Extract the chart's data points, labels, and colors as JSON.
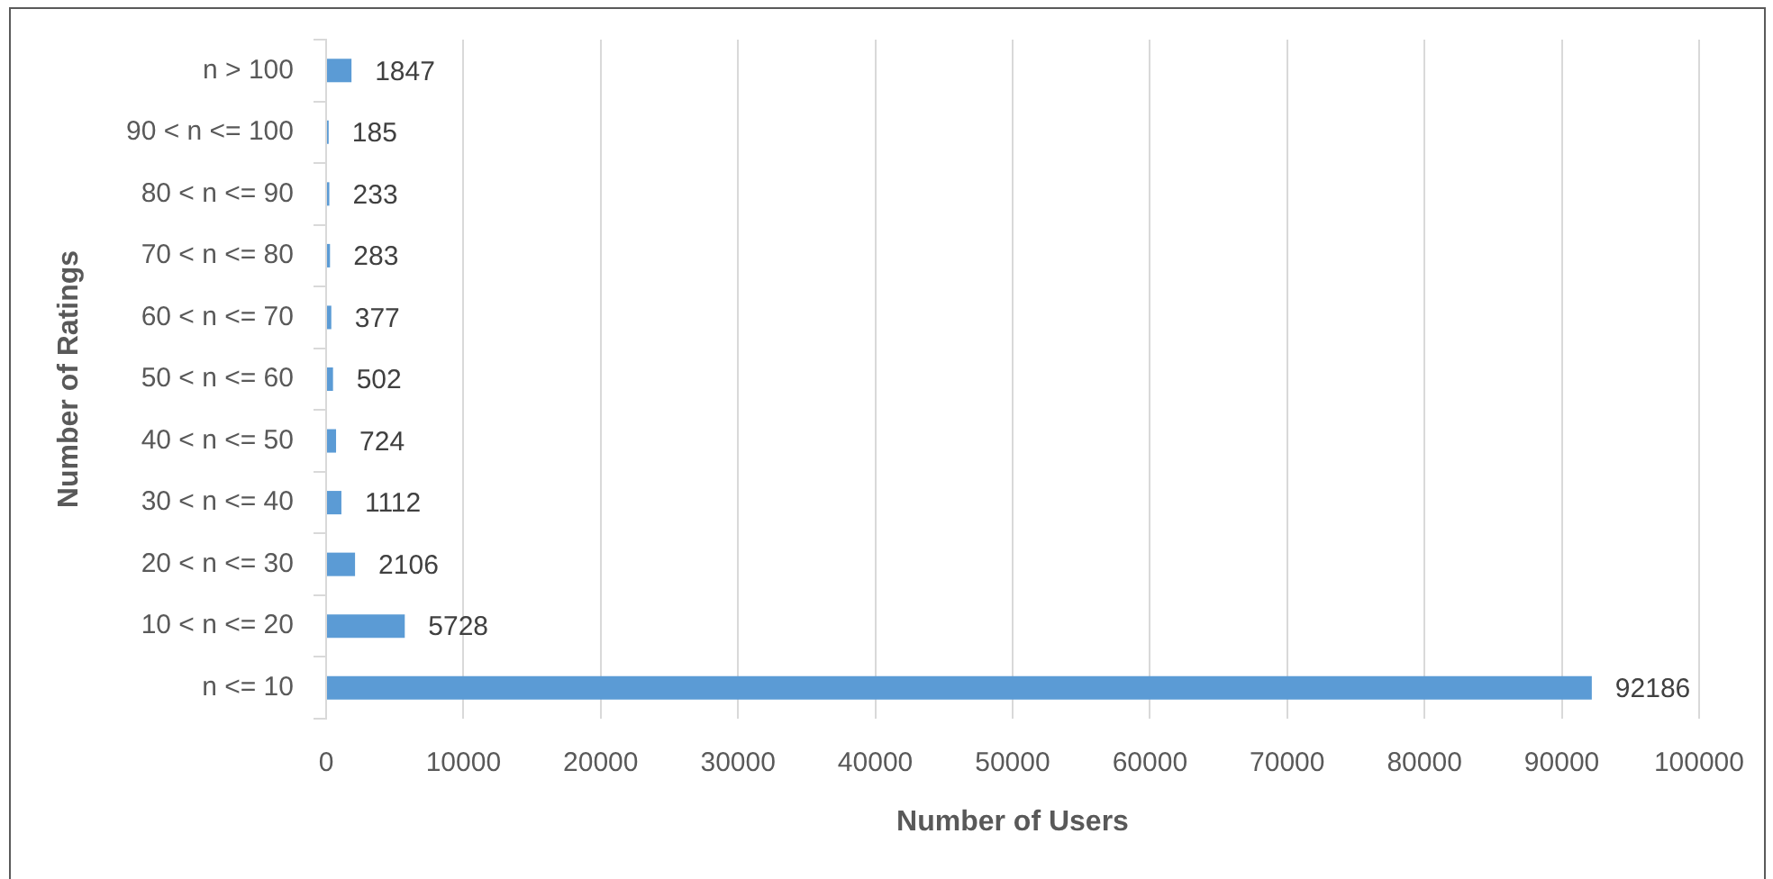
{
  "chart_data": {
    "type": "bar",
    "orientation": "horizontal",
    "categories": [
      "n > 100",
      "90 < n <= 100",
      "80 < n <= 90",
      "70 < n <= 80",
      "60 < n <= 70",
      "50 < n <= 60",
      "40 < n <= 50",
      "30 < n <= 40",
      "20 < n <= 30",
      "10 < n <= 20",
      "n <= 10"
    ],
    "values": [
      1847,
      185,
      233,
      283,
      377,
      502,
      724,
      1112,
      2106,
      5728,
      92186
    ],
    "color": "#5b9bd5",
    "xlabel": "Number of Users",
    "ylabel": "Number of Ratings",
    "xlim": [
      0,
      100000
    ],
    "xticks": [
      0,
      10000,
      20000,
      30000,
      40000,
      50000,
      60000,
      70000,
      80000,
      90000,
      100000
    ],
    "grid": "x",
    "data_labels": true
  }
}
